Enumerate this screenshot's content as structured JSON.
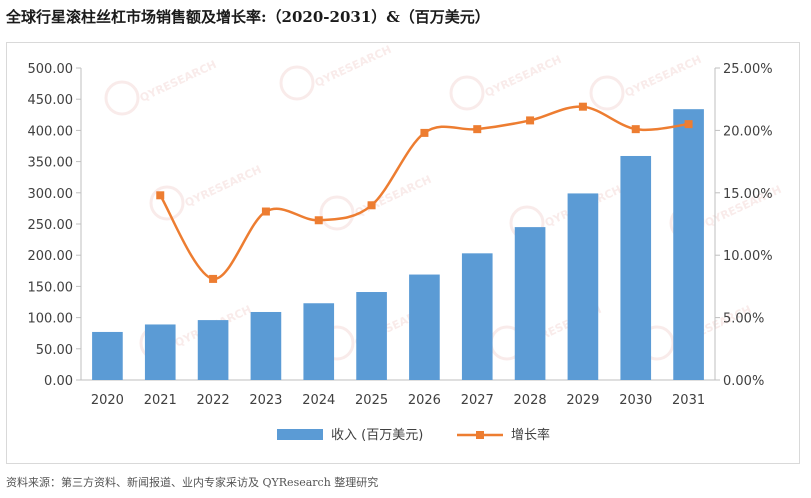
{
  "title": "全球行星滚柱丝杠市场销售额及增长率:（2020-2031）&（百万美元）",
  "source_note": "资料来源：第三方资料、新闻报道、业内专家采访及 QYResearch 整理研究",
  "watermark_text": "QYRESEARCH",
  "colors": {
    "bar": "#5b9bd5",
    "line": "#ed7d31",
    "axis": "#bfbfbf",
    "text": "#404040"
  },
  "chart_data": {
    "type": "bar+line",
    "title": "全球行星滚柱丝杠市场销售额及增长率:（2020-2031）&（百万美元）",
    "categories": [
      "2020",
      "2021",
      "2022",
      "2023",
      "2024",
      "2025",
      "2026",
      "2027",
      "2028",
      "2029",
      "2030",
      "2031"
    ],
    "series": [
      {
        "name": "收入 (百万美元)",
        "type": "bar",
        "axis": "left",
        "values": [
          77,
          89,
          96,
          109,
          123,
          141,
          169,
          203,
          245,
          299,
          359,
          434
        ]
      },
      {
        "name": "增长率",
        "type": "line",
        "axis": "right",
        "values": [
          null,
          14.8,
          8.1,
          13.5,
          12.8,
          14.0,
          19.8,
          20.1,
          20.8,
          21.9,
          20.1,
          20.5
        ]
      }
    ],
    "y_left": {
      "min": 0,
      "max": 500,
      "step": 50,
      "tick_labels": [
        "0.00",
        "50.00",
        "100.00",
        "150.00",
        "200.00",
        "250.00",
        "300.00",
        "350.00",
        "400.00",
        "450.00",
        "500.00"
      ]
    },
    "y_right": {
      "min": 0,
      "max": 25,
      "step": 5,
      "tick_labels": [
        "0.00%",
        "5.00%",
        "10.00%",
        "15.00%",
        "20.00%",
        "25.00%"
      ]
    },
    "legend": {
      "position": "bottom",
      "items": [
        "收入 (百万美元)",
        "增长率"
      ]
    },
    "grid": false
  }
}
